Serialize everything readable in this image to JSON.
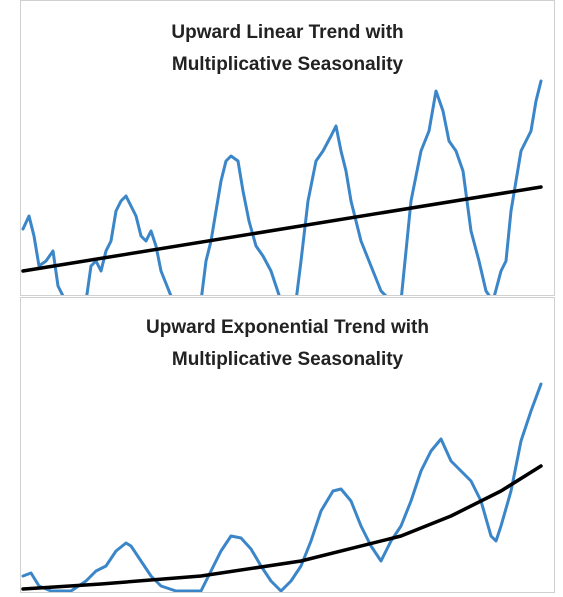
{
  "chart_data": [
    {
      "type": "line",
      "title": "Upward Linear Trend with Multiplicative Seasonality",
      "xlim": [
        0,
        520
      ],
      "ylim": [
        0,
        215
      ],
      "series": [
        {
          "color": "#3a86c8",
          "x": [
            2,
            8,
            13,
            18,
            25,
            32,
            37,
            42,
            50,
            65,
            70,
            75,
            80,
            85,
            90,
            95,
            100,
            105,
            110,
            115,
            120,
            125,
            130,
            135,
            140,
            150,
            155,
            180,
            185,
            190,
            195,
            200,
            205,
            210,
            217,
            222,
            228,
            235,
            242,
            250,
            260,
            275,
            280,
            287,
            295,
            302,
            310,
            315,
            320,
            325,
            330,
            340,
            350,
            360,
            370,
            380,
            385,
            390,
            400,
            408,
            415,
            422,
            428,
            435,
            442,
            450,
            458,
            465,
            472,
            480,
            485,
            490,
            495,
            500,
            505,
            510,
            515,
            520
          ],
          "values": [
            67,
            80,
            60,
            30,
            35,
            45,
            10,
            0,
            -5,
            -5,
            30,
            35,
            25,
            45,
            55,
            85,
            95,
            100,
            90,
            80,
            60,
            55,
            65,
            50,
            25,
            0,
            -5,
            -5,
            35,
            55,
            85,
            115,
            135,
            140,
            135,
            105,
            75,
            50,
            40,
            25,
            -5,
            -5,
            35,
            95,
            135,
            145,
            160,
            170,
            145,
            125,
            95,
            55,
            30,
            5,
            -5,
            -5,
            45,
            95,
            145,
            165,
            205,
            185,
            155,
            145,
            125,
            65,
            35,
            5,
            -5,
            25,
            35,
            85,
            115,
            145,
            155,
            165,
            195,
            215
          ]
        },
        {
          "color": "#000000",
          "x": [
            2,
            520
          ],
          "values": [
            25,
            109
          ]
        }
      ]
    },
    {
      "type": "line",
      "title": "Upward Exponential Trend with Multiplicative Seasonality",
      "xlim": [
        0,
        520
      ],
      "ylim": [
        0,
        207
      ],
      "series": [
        {
          "color": "#3a86c8",
          "x": [
            2,
            10,
            18,
            30,
            50,
            65,
            75,
            85,
            95,
            105,
            110,
            120,
            130,
            140,
            155,
            180,
            190,
            200,
            210,
            220,
            230,
            240,
            250,
            260,
            270,
            280,
            290,
            300,
            312,
            320,
            330,
            340,
            350,
            360,
            370,
            380,
            390,
            400,
            410,
            420,
            430,
            440,
            450,
            460,
            470,
            475,
            480,
            490,
            500,
            510,
            520
          ],
          "values": [
            15,
            18,
            5,
            0,
            0,
            10,
            20,
            25,
            40,
            48,
            45,
            30,
            15,
            5,
            0,
            0,
            20,
            40,
            55,
            53,
            42,
            25,
            10,
            0,
            10,
            25,
            50,
            80,
            100,
            102,
            90,
            65,
            45,
            30,
            50,
            65,
            90,
            120,
            140,
            152,
            130,
            120,
            110,
            90,
            55,
            50,
            65,
            100,
            150,
            180,
            207
          ]
        },
        {
          "color": "#000000",
          "x": [
            2,
            80,
            180,
            280,
            380,
            430,
            480,
            520
          ],
          "values": [
            2,
            7,
            15,
            30,
            55,
            75,
            100,
            125
          ]
        }
      ]
    }
  ]
}
